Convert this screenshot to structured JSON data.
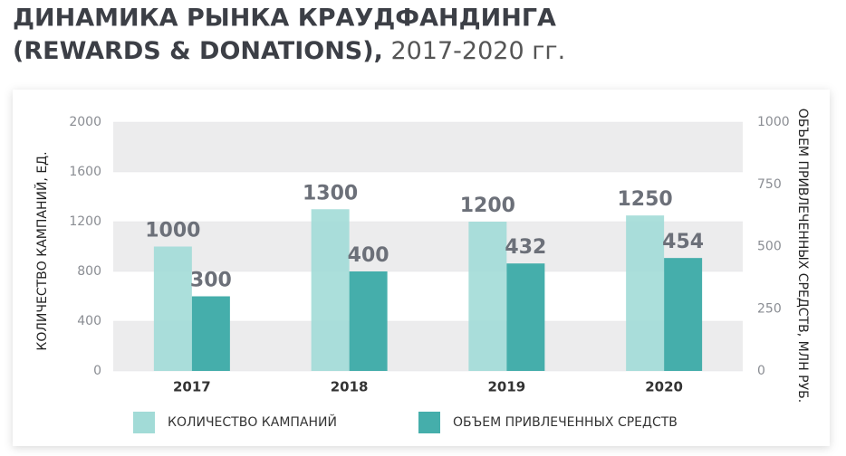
{
  "chart_data": {
    "type": "bar",
    "title": [
      "ДИНАМИКА РЫНКА КРАУДФАНДИНГА",
      "(REWARDS & DONATIONS),",
      "2017-2020 гг."
    ],
    "categories": [
      "2017",
      "2018",
      "2019",
      "2020"
    ],
    "series": [
      {
        "name": "КОЛИЧЕСТВО КАМПАНИЙ",
        "color": "#a2dbd7",
        "values": [
          1000,
          1300,
          1200,
          1250
        ]
      },
      {
        "name": "ОБЪЕМ ПРИВЛЕЧЕННЫХ СРЕДСТВ",
        "color": "#45aeab",
        "values": [
          300,
          400,
          432,
          454
        ],
        "axis": "y2"
      }
    ],
    "ylabel": "КОЛИЧЕСТВО КАМПАНИЙ, ЕД.",
    "y2label": "ОБЪЕМ ПРИВЛЕЧЕННЫХ СРЕДСТВ, МЛН РУБ.",
    "ylim": [
      0,
      2000
    ],
    "yticks": [
      0,
      400,
      800,
      1200,
      1600,
      2000
    ],
    "y2lim": [
      0,
      1000
    ],
    "y2ticks": [
      0,
      250,
      500,
      750,
      1000
    ],
    "grid": true,
    "legend": "bottom"
  }
}
